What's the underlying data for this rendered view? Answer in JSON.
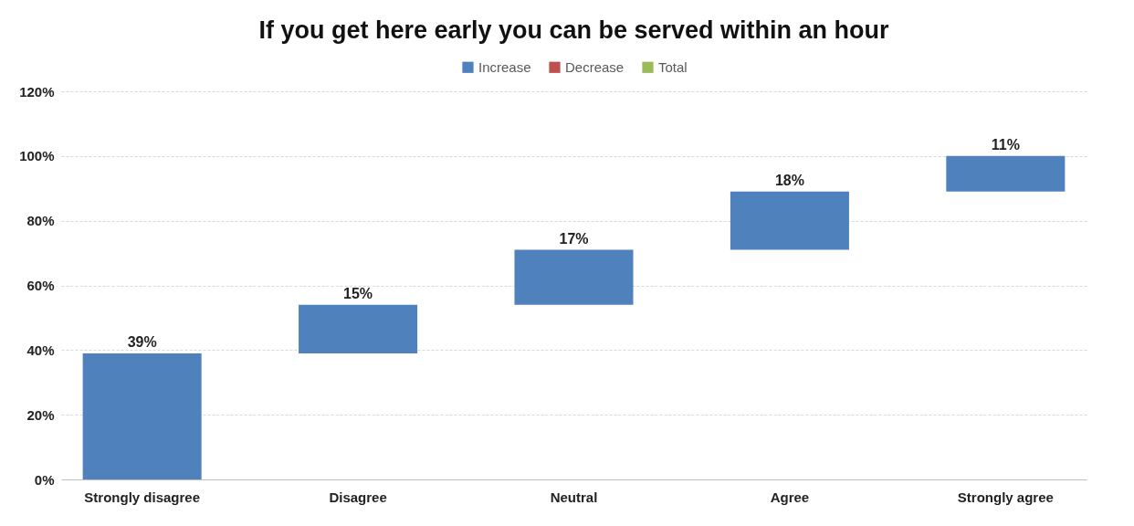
{
  "chart_data": {
    "type": "bar",
    "title": "If you get here early you can be served within an hour",
    "categories": [
      "Strongly disagree",
      "Disagree",
      "Neutral",
      "Agree",
      "Strongly agree"
    ],
    "series": [
      {
        "name": "Increase",
        "color": "#4f81bd",
        "base": [
          0,
          39,
          54,
          71,
          89
        ],
        "values": [
          39,
          15,
          17,
          18,
          11
        ],
        "value_labels": [
          "39%",
          "15%",
          "17%",
          "18%",
          "11%"
        ]
      },
      {
        "name": "Decrease",
        "color": "#c0504d",
        "values": [
          null,
          null,
          null,
          null,
          null
        ]
      },
      {
        "name": "Total",
        "color": "#9bbb59",
        "values": [
          null,
          null,
          null,
          null,
          null
        ]
      }
    ],
    "ylim": [
      0,
      120
    ],
    "yticks": [
      {
        "value": 0,
        "label": "0%"
      },
      {
        "value": 20,
        "label": "20%"
      },
      {
        "value": 40,
        "label": "40%"
      },
      {
        "value": 60,
        "label": "60%"
      },
      {
        "value": 80,
        "label": "80%"
      },
      {
        "value": 100,
        "label": "100%"
      },
      {
        "value": 120,
        "label": "120%"
      }
    ],
    "grid": "y",
    "legend": "top"
  }
}
